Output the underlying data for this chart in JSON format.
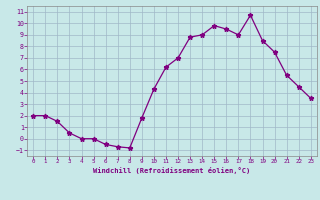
{
  "x": [
    0,
    1,
    2,
    3,
    4,
    5,
    6,
    7,
    8,
    9,
    10,
    11,
    12,
    13,
    14,
    15,
    16,
    17,
    18,
    19,
    20,
    21,
    22,
    23
  ],
  "y": [
    2.0,
    2.0,
    1.5,
    0.5,
    0.0,
    0.0,
    -0.5,
    -0.7,
    -0.8,
    1.8,
    4.3,
    6.2,
    7.0,
    8.8,
    9.0,
    9.8,
    9.5,
    9.0,
    10.7,
    8.5,
    7.5,
    5.5,
    4.5,
    3.5
  ],
  "xlabel": "Windchill (Refroidissement éolien,°C)",
  "ylim": [
    -1.5,
    11.5
  ],
  "xlim": [
    -0.5,
    23.5
  ],
  "yticks": [
    -1,
    0,
    1,
    2,
    3,
    4,
    5,
    6,
    7,
    8,
    9,
    10,
    11
  ],
  "xticks": [
    0,
    1,
    2,
    3,
    4,
    5,
    6,
    7,
    8,
    9,
    10,
    11,
    12,
    13,
    14,
    15,
    16,
    17,
    18,
    19,
    20,
    21,
    22,
    23
  ],
  "line_color": "#800080",
  "marker": "*",
  "bg_color": "#c8e8e8",
  "grid_color": "#a0b8c8",
  "tick_label_color": "#800080",
  "axis_label_color": "#800080"
}
